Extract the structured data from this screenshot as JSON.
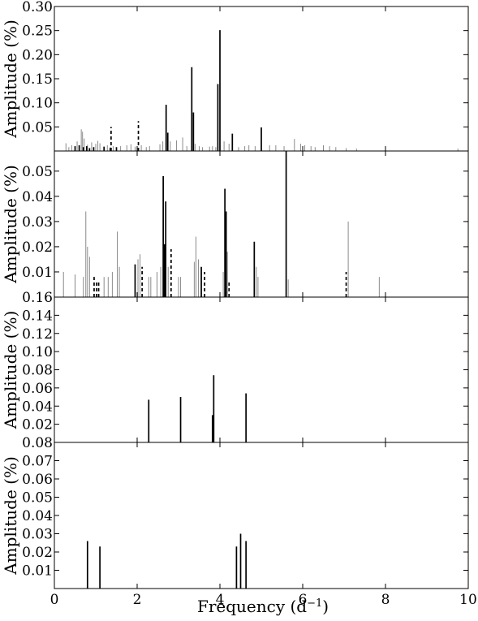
{
  "figure": {
    "xlabel": "Frequency (d",
    "xlabel_sup": "−1",
    "xlabel_close": ")",
    "x_ticks": [
      "0",
      "2",
      "4",
      "6",
      "8",
      "10"
    ],
    "xlim": [
      0,
      10
    ]
  },
  "chart_data": [
    {
      "type": "bar",
      "ylabel": "Amplitude (%)",
      "ylim": [
        0,
        0.3
      ],
      "yticks": [
        0.05,
        0.1,
        0.15,
        0.2,
        0.25,
        0.3
      ],
      "ytick_labels": [
        "0.05",
        "0.10",
        "0.15",
        "0.20",
        "0.25",
        "0.30"
      ],
      "series": [
        {
          "style": "solid-black",
          "x": [
            0.5,
            0.6,
            0.7,
            0.78,
            0.85,
            0.95,
            1.2,
            1.35,
            1.5,
            2.7,
            2.74,
            3.32,
            3.36,
            3.95,
            4.0,
            4.3,
            5.0
          ],
          "values": [
            0.01,
            0.012,
            0.008,
            0.01,
            0.006,
            0.008,
            0.009,
            0.007,
            0.008,
            0.096,
            0.038,
            0.174,
            0.08,
            0.139,
            0.251,
            0.036,
            0.049
          ]
        },
        {
          "style": "dashed-black",
          "x": [
            1.37,
            2.03
          ],
          "values": [
            0.05,
            0.062
          ]
        },
        {
          "style": "grey",
          "x": [
            0.28,
            0.35,
            0.42,
            0.55,
            0.65,
            0.68,
            0.72,
            0.8,
            0.9,
            1.0,
            1.05,
            1.1,
            1.28,
            1.42,
            1.6,
            1.75,
            1.85,
            1.95,
            2.1,
            2.22,
            2.3,
            2.55,
            2.62,
            2.8,
            2.95,
            3.1,
            3.2,
            3.4,
            3.5,
            3.58,
            3.75,
            3.82,
            3.9,
            4.1,
            4.22,
            4.45,
            4.6,
            4.7,
            4.85,
            5.2,
            5.35,
            5.55,
            5.8,
            5.95,
            6.05,
            6.2,
            6.3,
            6.5,
            6.65,
            6.8,
            7.05,
            7.3,
            9.75
          ],
          "values": [
            0.016,
            0.008,
            0.012,
            0.02,
            0.045,
            0.04,
            0.026,
            0.013,
            0.018,
            0.015,
            0.021,
            0.016,
            0.012,
            0.01,
            0.01,
            0.012,
            0.014,
            0.009,
            0.012,
            0.008,
            0.01,
            0.014,
            0.02,
            0.02,
            0.022,
            0.028,
            0.01,
            0.015,
            0.01,
            0.008,
            0.009,
            0.01,
            0.008,
            0.02,
            0.015,
            0.008,
            0.01,
            0.012,
            0.01,
            0.012,
            0.012,
            0.01,
            0.025,
            0.015,
            0.012,
            0.01,
            0.008,
            0.012,
            0.01,
            0.008,
            0.006,
            0.005,
            0.005
          ]
        }
      ]
    },
    {
      "type": "bar",
      "ylabel": "Amplitude (%)",
      "ylim": [
        0,
        0.058
      ],
      "yticks": [
        0.01,
        0.02,
        0.03,
        0.04,
        0.05
      ],
      "ytick_labels": [
        "0.01",
        "0.02",
        "0.03",
        "0.04",
        "0.05"
      ],
      "series": [
        {
          "style": "solid-black",
          "x": [
            1.95,
            2.63,
            2.66,
            2.69,
            3.55,
            4.12,
            4.15,
            4.83,
            5.6
          ],
          "values": [
            0.013,
            0.048,
            0.021,
            0.038,
            0.012,
            0.043,
            0.034,
            0.022,
            0.058
          ]
        },
        {
          "style": "dashed-black",
          "x": [
            0.96,
            1.02,
            1.07,
            2.12,
            2.82,
            3.63,
            4.22,
            7.05
          ],
          "values": [
            0.008,
            0.006,
            0.006,
            0.012,
            0.019,
            0.01,
            0.006,
            0.01
          ]
        },
        {
          "style": "grey",
          "x": [
            0.22,
            0.5,
            0.7,
            0.76,
            0.8,
            0.85,
            1.2,
            1.3,
            1.4,
            1.52,
            1.57,
            2.02,
            2.07,
            2.28,
            2.33,
            2.48,
            2.57,
            2.75,
            3.0,
            3.05,
            3.38,
            3.42,
            3.48,
            4.08,
            4.18,
            4.88,
            4.92,
            5.65,
            7.1,
            7.85
          ],
          "values": [
            0.01,
            0.009,
            0.008,
            0.034,
            0.02,
            0.016,
            0.008,
            0.008,
            0.01,
            0.026,
            0.012,
            0.015,
            0.017,
            0.008,
            0.008,
            0.01,
            0.012,
            0.012,
            0.008,
            0.008,
            0.014,
            0.024,
            0.015,
            0.01,
            0.018,
            0.012,
            0.008,
            0.007,
            0.03,
            0.008
          ]
        }
      ]
    },
    {
      "type": "bar",
      "ylabel": "Amplitude (%)",
      "ylim": [
        0,
        0.16
      ],
      "yticks": [
        0.02,
        0.04,
        0.06,
        0.08,
        0.1,
        0.12,
        0.14,
        0.16
      ],
      "ytick_labels": [
        "0.02",
        "0.04",
        "0.06",
        "0.08",
        "0.10",
        "0.12",
        "0.14",
        "0.16"
      ],
      "series": [
        {
          "style": "solid-black",
          "x": [
            2.28,
            3.05,
            3.82,
            3.85,
            4.63
          ],
          "values": [
            0.047,
            0.05,
            0.03,
            0.074,
            0.054
          ]
        }
      ]
    },
    {
      "type": "bar",
      "ylabel": "Amplitude (%)",
      "ylim": [
        0,
        0.08
      ],
      "yticks": [
        0.01,
        0.02,
        0.03,
        0.04,
        0.05,
        0.06,
        0.07,
        0.08
      ],
      "ytick_labels": [
        "0.01",
        "0.02",
        "0.03",
        "0.04",
        "0.05",
        "0.06",
        "0.07",
        "0.08"
      ],
      "series": [
        {
          "style": "solid-black",
          "x": [
            0.8,
            1.1,
            4.4,
            4.5,
            4.63
          ],
          "values": [
            0.026,
            0.023,
            0.023,
            0.03,
            0.026
          ]
        }
      ]
    }
  ]
}
